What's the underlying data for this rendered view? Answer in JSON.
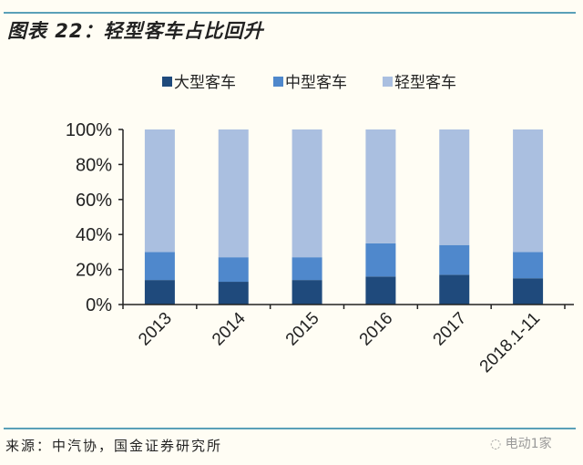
{
  "title": "图表 22：轻型客车占比回升",
  "source": "来源：中汽协，国金证券研究所",
  "watermark": "电动1家",
  "chart_data": {
    "type": "bar",
    "stacked": true,
    "categories": [
      "2013",
      "2014",
      "2015",
      "2016",
      "2017",
      "2018.1-11"
    ],
    "series": [
      {
        "name": "大型客车",
        "color": "#1f4a7c",
        "values": [
          14,
          13,
          14,
          16,
          17,
          15
        ]
      },
      {
        "name": "中型客车",
        "color": "#4f88cc",
        "values": [
          16,
          14,
          13,
          19,
          17,
          15
        ]
      },
      {
        "name": "轻型客车",
        "color": "#aabfe0",
        "values": [
          70,
          73,
          73,
          65,
          66,
          70
        ]
      }
    ],
    "yticks": [
      "0%",
      "20%",
      "40%",
      "60%",
      "80%",
      "100%"
    ],
    "ylim": [
      0,
      100
    ],
    "legend": "top",
    "grid": false
  }
}
